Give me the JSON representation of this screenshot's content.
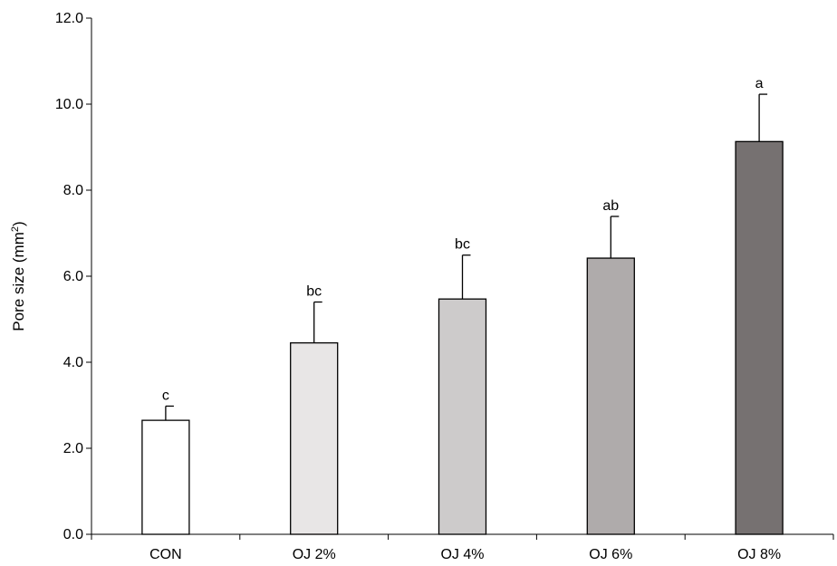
{
  "chart_data": {
    "type": "bar",
    "title": "",
    "xlabel": "",
    "ylabel": "Pore size (mm",
    "ylabel_superscript": "2",
    "ylabel_suffix": ")",
    "ylim": [
      0,
      12
    ],
    "yticks": [
      "0.0",
      "2.0",
      "4.0",
      "6.0",
      "8.0",
      "10.0",
      "12.0"
    ],
    "grid": false,
    "legend": "none",
    "categories": [
      "CON",
      "OJ 2%",
      "OJ 4%",
      "OJ 6%",
      "OJ 8%"
    ],
    "values": [
      2.65,
      4.45,
      5.47,
      6.42,
      9.13
    ],
    "errors": [
      0.33,
      0.95,
      1.02,
      0.97,
      1.1
    ],
    "significance_labels": [
      "c",
      "bc",
      "bc",
      "ab",
      "a"
    ],
    "colors": [
      "#ffffff",
      "#e8e6e6",
      "#cdcbcb",
      "#afabab",
      "#767171"
    ],
    "edge_color": "#000000"
  }
}
